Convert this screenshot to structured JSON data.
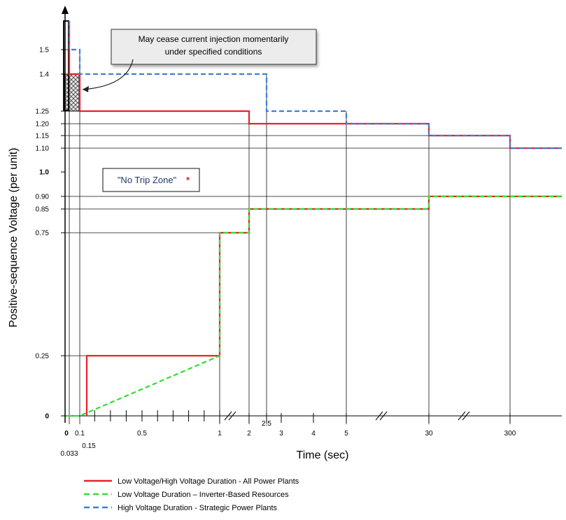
{
  "chart_data": {
    "type": "line",
    "xlabel": "Time (sec)",
    "ylabel": "Positive-sequence Voltage (per unit)",
    "x_ticks": [
      {
        "t": 0,
        "label": "0"
      },
      {
        "t": 0.033,
        "label": "0.033"
      },
      {
        "t": 0.1,
        "label": "0.1"
      },
      {
        "t": 0.15,
        "label": "0.15"
      },
      {
        "t": 0.5,
        "label": "0.5"
      },
      {
        "t": 1,
        "label": "1"
      },
      {
        "t": 2,
        "label": "2"
      },
      {
        "t": 2.5,
        "label": "2.5"
      },
      {
        "t": 3,
        "label": "3"
      },
      {
        "t": 4,
        "label": "4"
      },
      {
        "t": 5,
        "label": "5"
      },
      {
        "t": 30,
        "label": "30"
      },
      {
        "t": 300,
        "label": "300"
      }
    ],
    "y_ticks": [
      {
        "v": 0,
        "label": "0"
      },
      {
        "v": 0.25,
        "label": "0.25"
      },
      {
        "v": 0.75,
        "label": "0.75"
      },
      {
        "v": 0.85,
        "label": "0.85"
      },
      {
        "v": 0.9,
        "label": "0.90"
      },
      {
        "v": 1.0,
        "label": "1.0"
      },
      {
        "v": 1.1,
        "label": "1.10"
      },
      {
        "v": 1.15,
        "label": "1.15"
      },
      {
        "v": 1.2,
        "label": "1.20"
      },
      {
        "v": 1.25,
        "label": "1.25"
      },
      {
        "v": 1.4,
        "label": "1.4"
      },
      {
        "v": 1.5,
        "label": "1.5"
      }
    ],
    "series": [
      {
        "name": "Low Voltage/High Voltage Duration - All Power Plants",
        "color": "#e8202a",
        "style": "solid",
        "points": [
          [
            0.15,
            0
          ],
          [
            0.15,
            0.25
          ],
          [
            1,
            0.25
          ],
          [
            1,
            0.75
          ],
          [
            2,
            0.75
          ],
          [
            2,
            0.85
          ],
          [
            30,
            0.85
          ],
          [
            30,
            0.9
          ],
          [
            400,
            0.9
          ]
        ]
      },
      {
        "name": "Low Voltage/High Voltage Duration - All Power Plants",
        "color": "#e8202a",
        "style": "solid",
        "points": [
          [
            0.033,
            1.65
          ],
          [
            0.033,
            1.4
          ],
          [
            0.1,
            1.4
          ],
          [
            0.1,
            1.25
          ],
          [
            2,
            1.25
          ],
          [
            2,
            1.2
          ],
          [
            5,
            1.2
          ],
          [
            5,
            1.2
          ],
          [
            30,
            1.2
          ],
          [
            30,
            1.15
          ],
          [
            300,
            1.15
          ],
          [
            300,
            1.1
          ],
          [
            400,
            1.1
          ]
        ]
      },
      {
        "name": "Low Voltage Duration – Inverter-Based Resources",
        "color": "#33dd33",
        "style": "dashed",
        "points": [
          [
            0,
            0
          ],
          [
            0.1,
            0
          ],
          [
            1,
            0.25
          ],
          [
            1,
            0.75
          ],
          [
            2,
            0.75
          ],
          [
            2,
            0.85
          ],
          [
            30,
            0.85
          ],
          [
            30,
            0.9
          ],
          [
            400,
            0.9
          ]
        ]
      },
      {
        "name": "High Voltage Duration - Strategic Power Plants",
        "color": "#3b7fd9",
        "style": "dashed",
        "points": [
          [
            0.033,
            1.65
          ],
          [
            0.033,
            1.5
          ],
          [
            0.1,
            1.5
          ],
          [
            0.1,
            1.4
          ],
          [
            2.5,
            1.4
          ],
          [
            2.5,
            1.25
          ],
          [
            5,
            1.25
          ],
          [
            5,
            1.2
          ],
          [
            30,
            1.2
          ],
          [
            30,
            1.15
          ],
          [
            300,
            1.15
          ],
          [
            300,
            1.1
          ],
          [
            400,
            1.1
          ]
        ]
      }
    ],
    "annotations": {
      "callout": [
        "May cease current injection momentarily",
        "under specified conditions"
      ],
      "zone_label": "\"No Trip Zone\"",
      "zone_star": "*"
    },
    "legend": [
      {
        "label": "Low Voltage/High Voltage Duration - All Power Plants",
        "color": "#e8202a",
        "style": "solid"
      },
      {
        "label": "Low Voltage Duration – Inverter-Based Resources",
        "color": "#33dd33",
        "style": "dashed"
      },
      {
        "label": "High Voltage Duration - Strategic Power Plants",
        "color": "#3b7fd9",
        "style": "dashed"
      }
    ],
    "legend_position": "bottom-left",
    "grid": false
  }
}
